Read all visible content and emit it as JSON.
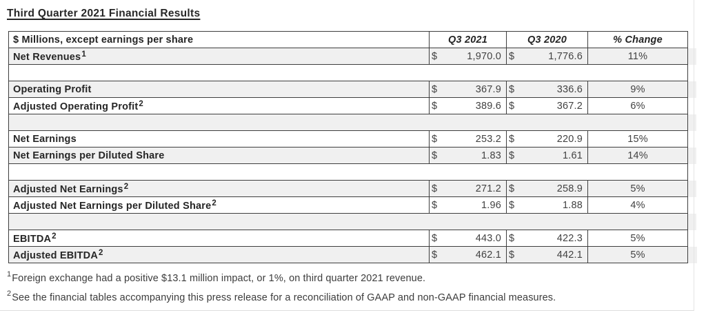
{
  "page": {
    "title": "Third Quarter 2021 Financial Results"
  },
  "table": {
    "currency_symbol": "$",
    "header": {
      "metric": "$ Millions, except earnings per share",
      "q3_2021": "Q3 2021",
      "q3_2020": "Q3 2020",
      "pct_change": "% Change"
    },
    "rows": [
      {
        "type": "data",
        "label": "Net Revenues",
        "sup": "1",
        "q3_2021": "1,970.0",
        "q3_2020": "1,776.6",
        "change": "11%"
      },
      {
        "type": "spacer"
      },
      {
        "type": "data",
        "label": "Operating Profit",
        "sup": "",
        "q3_2021": "367.9",
        "q3_2020": "336.6",
        "change": "9%"
      },
      {
        "type": "data",
        "label": "Adjusted Operating Profit",
        "sup": "2",
        "q3_2021": "389.6",
        "q3_2020": "367.2",
        "change": "6%"
      },
      {
        "type": "spacer"
      },
      {
        "type": "data",
        "label": "Net Earnings",
        "sup": "",
        "q3_2021": "253.2",
        "q3_2020": "220.9",
        "change": "15%"
      },
      {
        "type": "data",
        "label": "Net Earnings per Diluted Share",
        "sup": "",
        "q3_2021": "1.83",
        "q3_2020": "1.61",
        "change": "14%"
      },
      {
        "type": "spacer"
      },
      {
        "type": "data",
        "label": "Adjusted Net Earnings",
        "sup": "2",
        "q3_2021": "271.2",
        "q3_2020": "258.9",
        "change": "5%"
      },
      {
        "type": "data",
        "label": "Adjusted Net Earnings per Diluted Share",
        "sup": "2",
        "q3_2021": "1.96",
        "q3_2020": "1.88",
        "change": "4%"
      },
      {
        "type": "spacer"
      },
      {
        "type": "data",
        "label": "EBITDA",
        "sup": "2",
        "q3_2021": "443.0",
        "q3_2020": "422.3",
        "change": "5%"
      },
      {
        "type": "data",
        "label": "Adjusted EBITDA",
        "sup": "2",
        "q3_2021": "462.1",
        "q3_2020": "442.1",
        "change": "5%"
      }
    ]
  },
  "footnotes": [
    {
      "marker": "1",
      "text": "Foreign exchange had a positive $13.1 million impact, or 1%, on third quarter 2021 revenue."
    },
    {
      "marker": "2",
      "text": "See the financial tables accompanying this press release for a reconciliation of GAAP and non-GAAP financial measures."
    }
  ],
  "colors": {
    "row_stripe": "#f0f0f0",
    "table_border": "#3d3d3d",
    "label_text": "#262626",
    "value_text": "#424242",
    "pane_edge": "#e4e4e4"
  }
}
